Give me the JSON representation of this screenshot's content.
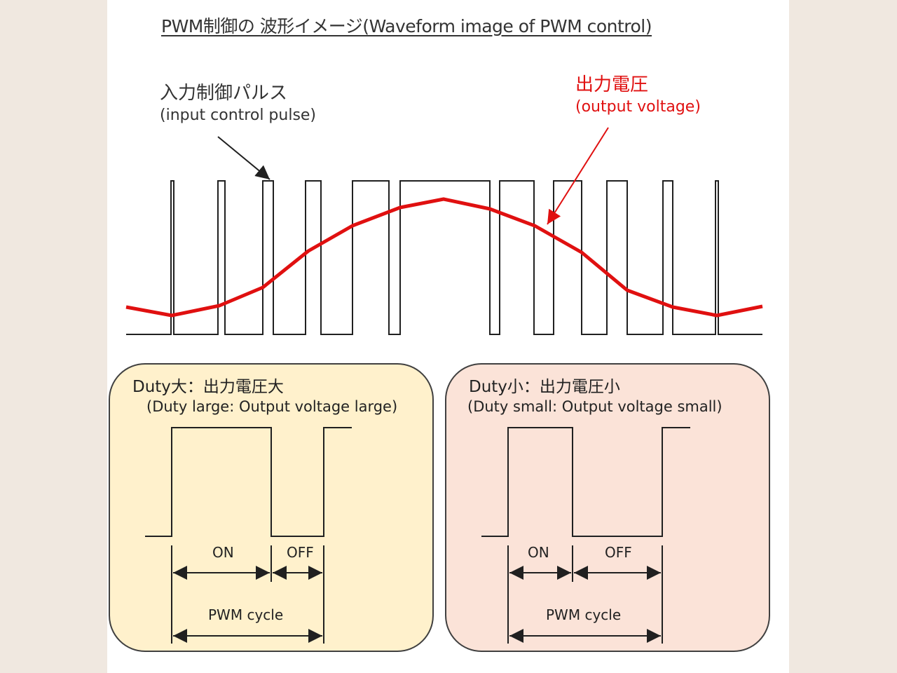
{
  "title": "PWM制御の 波形イメージ(Waveform image of PWM control)",
  "input_label": {
    "ja": "入力制御パルス",
    "en": "(input control pulse)"
  },
  "output_label": {
    "ja": "出力電圧",
    "en": "(output voltage)"
  },
  "colors": {
    "output": "#e01010",
    "line": "#202020",
    "panel_large": "#fff1cc",
    "panel_small": "#fbe3d8"
  },
  "panel_large": {
    "title": "Duty大：出力電圧大",
    "subtitle": "(Duty large: Output voltage large)",
    "on_label": "ON",
    "off_label": "OFF",
    "cycle_label": "PWM cycle"
  },
  "panel_small": {
    "title": "Duty小：出力電圧小",
    "subtitle": "(Duty small: Output voltage small)",
    "on_label": "ON",
    "off_label": "OFF",
    "cycle_label": "PWM cycle"
  }
}
